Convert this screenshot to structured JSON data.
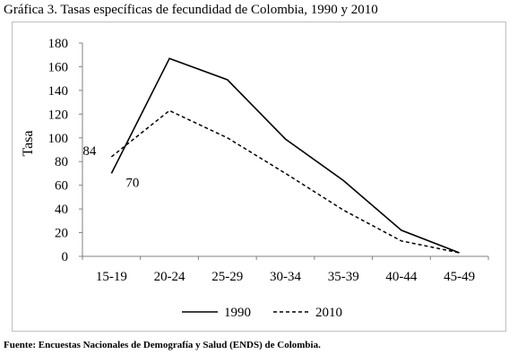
{
  "title": "Gráfica 3. Tasas específicas de fecundidad de Colombia, 1990 y 2010",
  "source": "Fuente: Encuestas Nacionales de Demografía y Salud (ENDS) de Colombia.",
  "chart_data": {
    "type": "line",
    "title": "Gráfica 3. Tasas específicas de fecundidad de Colombia, 1990 y 2010",
    "xlabel": "",
    "ylabel": "Tasa",
    "categories": [
      "15-19",
      "20-24",
      "25-29",
      "30-34",
      "35-39",
      "40-44",
      "45-49"
    ],
    "ylim": [
      0,
      180
    ],
    "yticks": [
      0,
      20,
      40,
      60,
      80,
      100,
      120,
      140,
      160,
      180
    ],
    "grid": false,
    "legend_position": "bottom",
    "series": [
      {
        "name": "1990",
        "style": "solid",
        "color": "#000000",
        "values": [
          70,
          167,
          149,
          99,
          64,
          22,
          3
        ]
      },
      {
        "name": "2010",
        "style": "dashed",
        "color": "#000000",
        "values": [
          84,
          123,
          100,
          70,
          39,
          13,
          3
        ]
      }
    ],
    "annotations": [
      {
        "text": "84",
        "series": "2010",
        "category": "15-19"
      },
      {
        "text": "70",
        "series": "1990",
        "category": "15-19"
      }
    ]
  }
}
